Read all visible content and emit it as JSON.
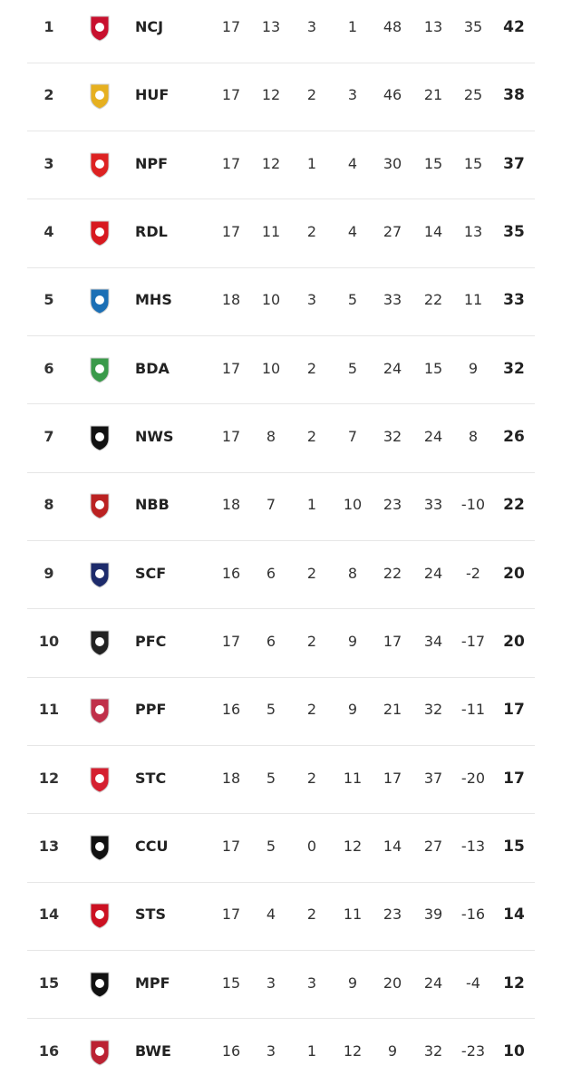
{
  "table": {
    "rows": [
      [
        "1",
        "NCJ",
        "17",
        "13",
        "3",
        "1",
        "48",
        "13",
        "35",
        "42"
      ],
      [
        "2",
        "HUF",
        "17",
        "12",
        "2",
        "3",
        "46",
        "21",
        "25",
        "38"
      ],
      [
        "3",
        "NPF",
        "17",
        "12",
        "1",
        "4",
        "30",
        "15",
        "15",
        "37"
      ],
      [
        "4",
        "RDL",
        "17",
        "11",
        "2",
        "4",
        "27",
        "14",
        "13",
        "35"
      ],
      [
        "5",
        "MHS",
        "18",
        "10",
        "3",
        "5",
        "33",
        "22",
        "11",
        "33"
      ],
      [
        "6",
        "BDA",
        "17",
        "10",
        "2",
        "5",
        "24",
        "15",
        "9",
        "32"
      ],
      [
        "7",
        "NWS",
        "17",
        "8",
        "2",
        "7",
        "32",
        "24",
        "8",
        "26"
      ],
      [
        "8",
        "NBB",
        "18",
        "7",
        "1",
        "10",
        "23",
        "33",
        "-10",
        "22"
      ],
      [
        "9",
        "SCF",
        "16",
        "6",
        "2",
        "8",
        "22",
        "24",
        "-2",
        "20"
      ],
      [
        "10",
        "PFC",
        "17",
        "6",
        "2",
        "9",
        "17",
        "34",
        "-17",
        "20"
      ],
      [
        "11",
        "PPF",
        "16",
        "5",
        "2",
        "9",
        "21",
        "32",
        "-11",
        "17"
      ],
      [
        "12",
        "STC",
        "18",
        "5",
        "2",
        "11",
        "17",
        "37",
        "-20",
        "17"
      ],
      [
        "13",
        "CCU",
        "17",
        "5",
        "0",
        "12",
        "14",
        "27",
        "-13",
        "15"
      ],
      [
        "14",
        "STS",
        "17",
        "4",
        "2",
        "11",
        "23",
        "39",
        "-16",
        "14"
      ],
      [
        "15",
        "MPF",
        "15",
        "3",
        "3",
        "9",
        "20",
        "24",
        "-4",
        "12"
      ],
      [
        "16",
        "BWE",
        "16",
        "3",
        "1",
        "12",
        "9",
        "32",
        "-23",
        "10"
      ]
    ]
  }
}
